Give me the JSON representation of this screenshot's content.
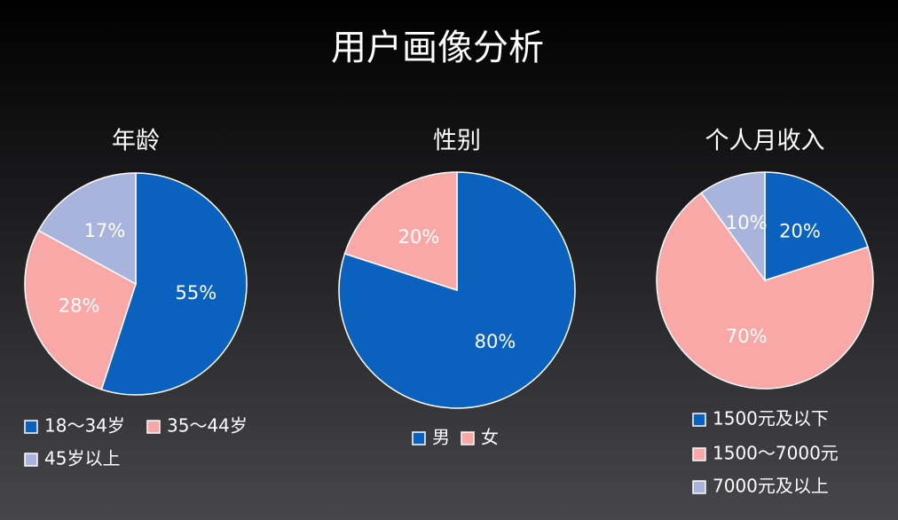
{
  "title": "用户画像分析",
  "chart_data": [
    {
      "type": "pie",
      "title": "年龄",
      "categories": [
        "18～34岁",
        "35～44岁",
        "45岁以上"
      ],
      "values": [
        55,
        28,
        17
      ],
      "value_labels": [
        "55%",
        "28%",
        "17%"
      ],
      "colors": [
        "#0a62be",
        "#f9a8a8",
        "#a9b4dc"
      ]
    },
    {
      "type": "pie",
      "title": "性别",
      "categories": [
        "男",
        "女"
      ],
      "values": [
        80,
        20
      ],
      "value_labels": [
        "80%",
        "20%"
      ],
      "colors": [
        "#0a62be",
        "#f9a8a8"
      ]
    },
    {
      "type": "pie",
      "title": "个人月收入",
      "categories": [
        "1500元及以下",
        "1500～7000元",
        "7000元及以上"
      ],
      "values": [
        20,
        70,
        10
      ],
      "value_labels": [
        "20%",
        "70%",
        "10%"
      ],
      "colors": [
        "#0a62be",
        "#f9a8a8",
        "#a9b4dc"
      ]
    }
  ]
}
